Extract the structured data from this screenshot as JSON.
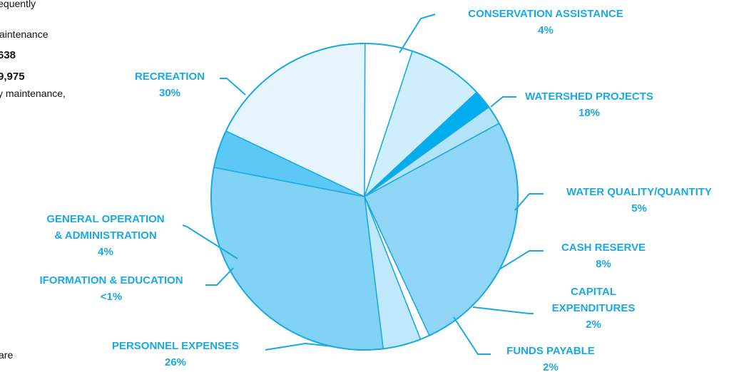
{
  "left_text": {
    "line1": "utilities, frequently",
    "line2": "aintenance",
    "line3": "638",
    "line4": "9,975",
    "line5": "y maintenance,",
    "line6": "are"
  },
  "chart_data": {
    "type": "pie",
    "title": "",
    "slices": [
      {
        "label_lines": [
          "CONSERVATION ASSISTANCE"
        ],
        "pct_label": "4%",
        "value": 4,
        "color": "#5bc8f5"
      },
      {
        "label_lines": [
          "WATERSHED PROJECTS"
        ],
        "pct_label": "18%",
        "value": 18,
        "color": "#e6f5fd"
      },
      {
        "label_lines": [
          "WATER QUALITY/QUANTITY"
        ],
        "pct_label": "5%",
        "value": 5,
        "color": "#ffffff"
      },
      {
        "label_lines": [
          "CASH RESERVE"
        ],
        "pct_label": "8%",
        "value": 8,
        "color": "#cfeefb"
      },
      {
        "label_lines": [
          "CAPITAL",
          "EXPENDITURES"
        ],
        "pct_label": "2%",
        "value": 2,
        "color": "#00aeef"
      },
      {
        "label_lines": [
          "FUNDS PAYABLE"
        ],
        "pct_label": "2%",
        "value": 2,
        "color": "#b3e3f8"
      },
      {
        "label_lines": [
          "PERSONNEL EXPENSES"
        ],
        "pct_label": "26%",
        "value": 26,
        "color": "#8ed5f6"
      },
      {
        "label_lines": [
          "IFORMATION & EDUCATION"
        ],
        "pct_label": "<1%",
        "value": 1,
        "color": "#ffffff"
      },
      {
        "label_lines": [
          "GENERAL OPERATION",
          "& ADMINISTRATION"
        ],
        "pct_label": "4%",
        "value": 4,
        "color": "#bfe8fa"
      },
      {
        "label_lines": [
          "RECREATION"
        ],
        "pct_label": "30%",
        "value": 30,
        "color": "#80d3f5"
      }
    ],
    "colors": {
      "outline": "#1aa9e2",
      "label_text": "#1aa9e2"
    },
    "legend": "none"
  }
}
